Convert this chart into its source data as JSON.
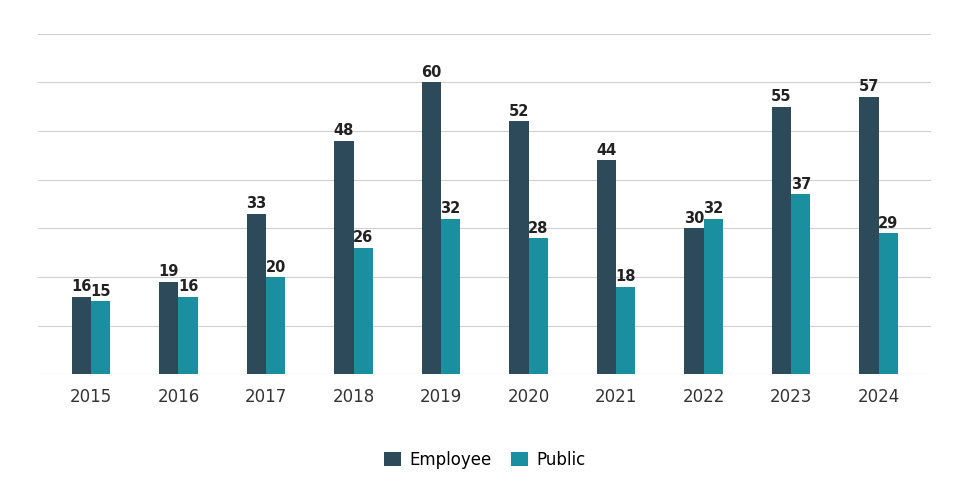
{
  "years": [
    2015,
    2016,
    2017,
    2018,
    2019,
    2020,
    2021,
    2022,
    2023,
    2024
  ],
  "employee": [
    16,
    19,
    33,
    48,
    60,
    52,
    44,
    30,
    55,
    57
  ],
  "public": [
    15,
    16,
    20,
    26,
    32,
    28,
    18,
    32,
    37,
    29
  ],
  "employee_color": "#2d4a5a",
  "public_color": "#1a8fa0",
  "background_color": "#ffffff",
  "grid_color": "#d0d0d0",
  "legend_labels": [
    "Employee",
    "Public"
  ],
  "bar_width": 0.22,
  "ylim": [
    0,
    70
  ],
  "yticks": [
    0,
    10,
    20,
    30,
    40,
    50,
    60,
    70
  ],
  "label_fontsize": 10.5,
  "tick_fontsize": 12,
  "legend_fontsize": 12
}
